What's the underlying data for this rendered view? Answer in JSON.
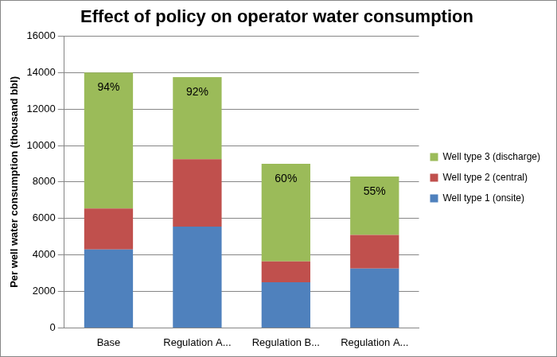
{
  "chart_data": {
    "type": "bar",
    "stacked": true,
    "title": "Effect of policy on operator water consumption",
    "y_label": "Per well water consumption (thousand bbl)",
    "categories": [
      "Base",
      "Regulation A...",
      "Regulation B...",
      "Regulation A..."
    ],
    "series": [
      {
        "name": "Well type 1 (onsite)",
        "color": "#4f81bd",
        "values": [
          4300,
          5550,
          2500,
          3250
        ]
      },
      {
        "name": "Well type 2 (central)",
        "color": "#c0504d",
        "values": [
          2250,
          3700,
          1150,
          1850
        ]
      },
      {
        "name": "Well type 3 (discharge)",
        "color": "#9bbb59",
        "values": [
          7450,
          4500,
          5350,
          3200
        ],
        "annotations": [
          "94%",
          "92%",
          "60%",
          "55%"
        ]
      }
    ],
    "ylim": [
      0,
      16000
    ],
    "yticks": [
      0,
      2000,
      4000,
      6000,
      8000,
      10000,
      12000,
      14000,
      16000
    ],
    "grid": true,
    "legend": "right"
  }
}
